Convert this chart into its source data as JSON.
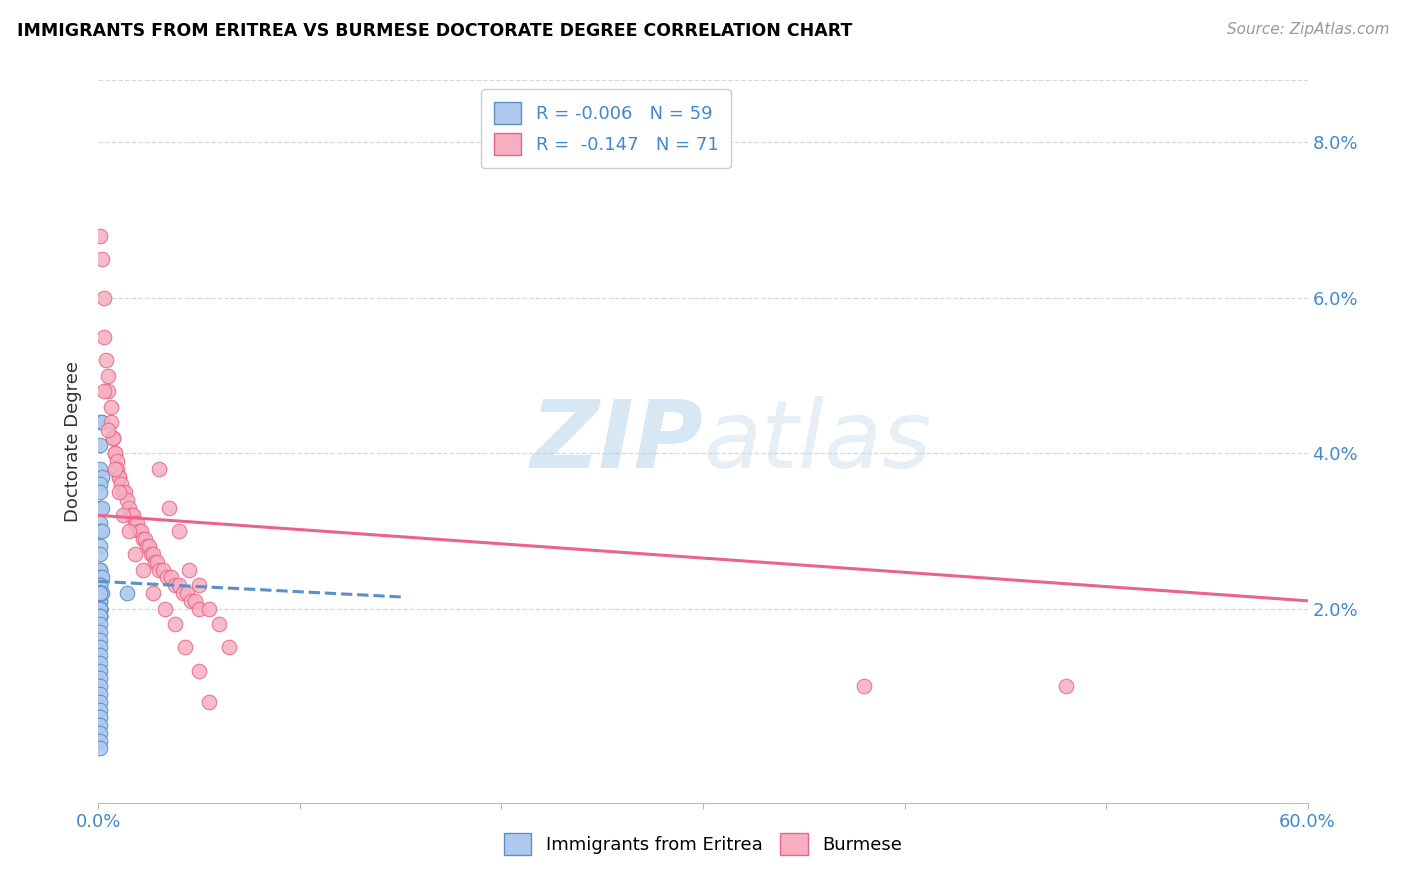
{
  "title": "IMMIGRANTS FROM ERITREA VS BURMESE DOCTORATE DEGREE CORRELATION CHART",
  "source": "Source: ZipAtlas.com",
  "ylabel": "Doctorate Degree",
  "ylabel_right_ticks": [
    "8.0%",
    "6.0%",
    "4.0%",
    "2.0%"
  ],
  "ylabel_right_vals": [
    0.08,
    0.06,
    0.04,
    0.02
  ],
  "xlim": [
    0.0,
    0.6
  ],
  "ylim": [
    -0.005,
    0.088
  ],
  "legend_eritrea_R": "-0.006",
  "legend_eritrea_N": "59",
  "legend_burmese_R": "-0.147",
  "legend_burmese_N": "71",
  "eritrea_color": "#aec9ed",
  "burmese_color": "#f5afc0",
  "eritrea_edge_color": "#5a8fc8",
  "burmese_edge_color": "#e8648a",
  "eritrea_trend_color": "#5a8fc8",
  "burmese_trend_color": "#e8648a",
  "grid_color": "#d8d8d8",
  "watermark_color": "#c8dff0",
  "eritrea_scatter_x": [
    0.001,
    0.002,
    0.001,
    0.001,
    0.002,
    0.001,
    0.001,
    0.001,
    0.002,
    0.001,
    0.001,
    0.002,
    0.001,
    0.001,
    0.001,
    0.001,
    0.001,
    0.002,
    0.001,
    0.001,
    0.001,
    0.001,
    0.001,
    0.001,
    0.001,
    0.001,
    0.001,
    0.001,
    0.001,
    0.001,
    0.001,
    0.001,
    0.002,
    0.001,
    0.001,
    0.001,
    0.001,
    0.001,
    0.001,
    0.001,
    0.001,
    0.001,
    0.001,
    0.001,
    0.001,
    0.001,
    0.001,
    0.001,
    0.001,
    0.001,
    0.001,
    0.001,
    0.001,
    0.001,
    0.014,
    0.001,
    0.001,
    0.001,
    0.001
  ],
  "eritrea_scatter_y": [
    0.044,
    0.044,
    0.041,
    0.038,
    0.037,
    0.036,
    0.035,
    0.033,
    0.033,
    0.031,
    0.03,
    0.03,
    0.028,
    0.027,
    0.025,
    0.025,
    0.024,
    0.024,
    0.023,
    0.023,
    0.022,
    0.022,
    0.021,
    0.021,
    0.02,
    0.02,
    0.019,
    0.019,
    0.022,
    0.022,
    0.022,
    0.022,
    0.022,
    0.022,
    0.02,
    0.02,
    0.02,
    0.02,
    0.02,
    0.019,
    0.019,
    0.018,
    0.017,
    0.016,
    0.015,
    0.014,
    0.013,
    0.012,
    0.011,
    0.01,
    0.009,
    0.008,
    0.007,
    0.006,
    0.022,
    0.005,
    0.004,
    0.003,
    0.002
  ],
  "burmese_scatter_x": [
    0.001,
    0.002,
    0.003,
    0.003,
    0.004,
    0.005,
    0.005,
    0.006,
    0.006,
    0.007,
    0.007,
    0.008,
    0.008,
    0.009,
    0.009,
    0.01,
    0.01,
    0.011,
    0.012,
    0.013,
    0.014,
    0.015,
    0.016,
    0.017,
    0.018,
    0.019,
    0.02,
    0.021,
    0.022,
    0.023,
    0.024,
    0.025,
    0.026,
    0.027,
    0.028,
    0.029,
    0.03,
    0.032,
    0.034,
    0.036,
    0.038,
    0.04,
    0.042,
    0.044,
    0.046,
    0.048,
    0.05,
    0.03,
    0.035,
    0.04,
    0.045,
    0.05,
    0.055,
    0.06,
    0.065,
    0.38,
    0.48,
    0.003,
    0.005,
    0.008,
    0.01,
    0.012,
    0.015,
    0.018,
    0.022,
    0.027,
    0.033,
    0.038,
    0.043,
    0.05,
    0.055
  ],
  "burmese_scatter_y": [
    0.068,
    0.065,
    0.06,
    0.055,
    0.052,
    0.05,
    0.048,
    0.046,
    0.044,
    0.042,
    0.042,
    0.04,
    0.04,
    0.039,
    0.038,
    0.037,
    0.037,
    0.036,
    0.035,
    0.035,
    0.034,
    0.033,
    0.032,
    0.032,
    0.031,
    0.031,
    0.03,
    0.03,
    0.029,
    0.029,
    0.028,
    0.028,
    0.027,
    0.027,
    0.026,
    0.026,
    0.025,
    0.025,
    0.024,
    0.024,
    0.023,
    0.023,
    0.022,
    0.022,
    0.021,
    0.021,
    0.02,
    0.038,
    0.033,
    0.03,
    0.025,
    0.023,
    0.02,
    0.018,
    0.015,
    0.01,
    0.01,
    0.048,
    0.043,
    0.038,
    0.035,
    0.032,
    0.03,
    0.027,
    0.025,
    0.022,
    0.02,
    0.018,
    0.015,
    0.012,
    0.008
  ],
  "eritrea_trend_x0": 0.0,
  "eritrea_trend_x1": 0.15,
  "eritrea_trend_y0": 0.0235,
  "eritrea_trend_y1": 0.0215,
  "burmese_trend_x0": 0.0,
  "burmese_trend_x1": 0.6,
  "burmese_trend_y0": 0.032,
  "burmese_trend_y1": 0.021
}
